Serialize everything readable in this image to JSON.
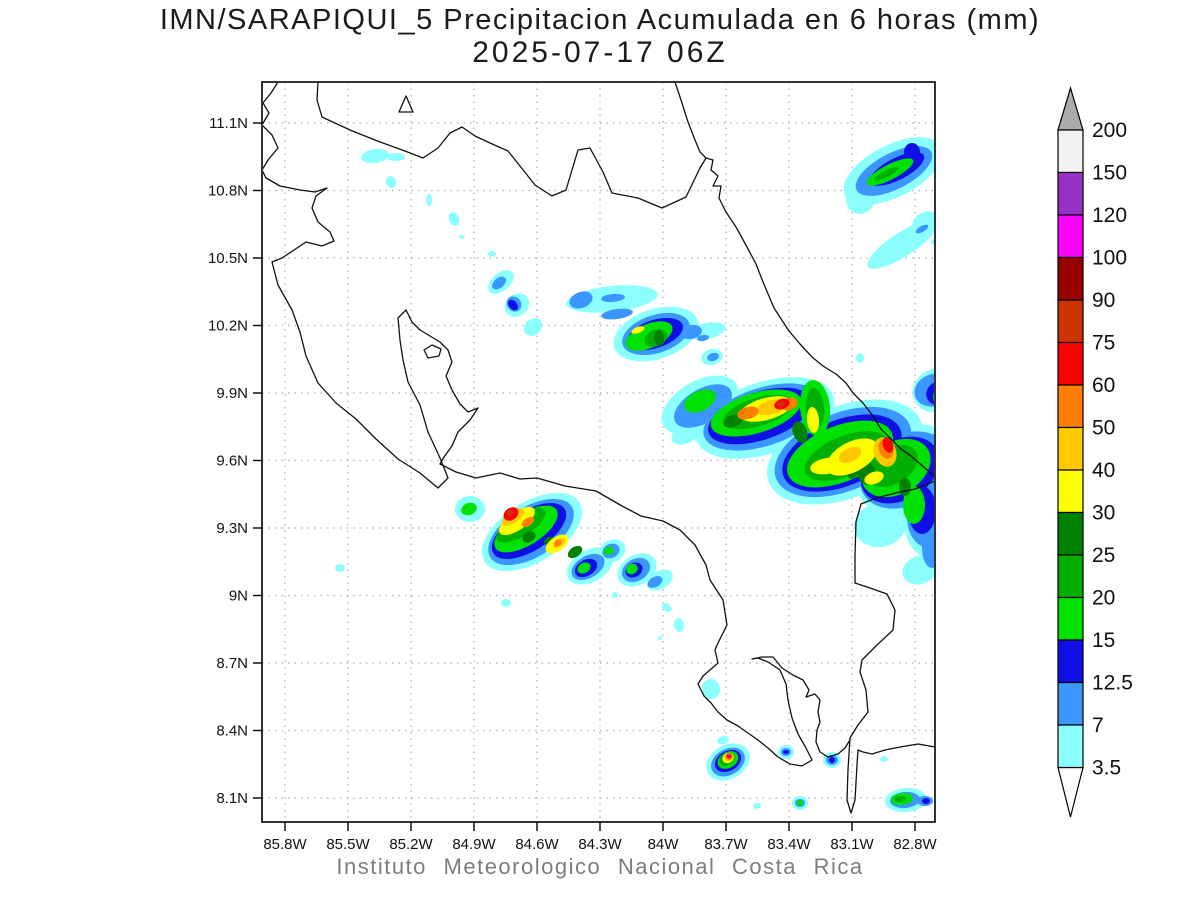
{
  "title": {
    "line1": "IMN/SARAPIQUI_5 Precipitacion Acumulada en 6 horas (mm)",
    "line2": "2025-07-17 06Z"
  },
  "footer": "Instituto Meteorologico Nacional Costa Rica",
  "map": {
    "lat_labels": [
      "11.1N",
      "10.8N",
      "10.5N",
      "10.2N",
      "9.9N",
      "9.6N",
      "9.3N",
      "9N",
      "8.7N",
      "8.4N",
      "8.1N"
    ],
    "lon_labels": [
      "85.8W",
      "85.5W",
      "85.2W",
      "84.9W",
      "84.6W",
      "84.3W",
      "84W",
      "83.7W",
      "83.4W",
      "83.1W",
      "82.8W"
    ]
  },
  "colorbar": {
    "labels_top_to_bottom": [
      "200",
      "150",
      "120",
      "100",
      "90",
      "75",
      "60",
      "50",
      "40",
      "30",
      "25",
      "20",
      "15",
      "12.5",
      "7",
      "3.5"
    ],
    "segment_colors_top_to_bottom": [
      "#F2F2F2",
      "#9632C8",
      "#FF00FF",
      "#990000",
      "#CC3300",
      "#FF0000",
      "#FF7D00",
      "#FFC800",
      "#FFFF00",
      "#008200",
      "#00AF00",
      "#00E100",
      "#0F0FE6",
      "#3C96FF",
      "#8CFFFF"
    ],
    "above_max_color": "#ABABAB",
    "below_min_color": "#FFFFFF",
    "units": "mm"
  },
  "palette_legend": {
    "cyan": "#8CFFFF",
    "light_blue": "#3C96FF",
    "blue": "#0F0FE6",
    "green": "#00E100",
    "mid_green": "#00AF00",
    "dark_green": "#008200",
    "yellow": "#FFFF00",
    "gold": "#FFC800",
    "orange": "#FF7D00",
    "red": "#FF0000",
    "brick": "#CC3300",
    "dark_red": "#990000",
    "magenta": "#FF00FF",
    "purple": "#9632C8"
  }
}
